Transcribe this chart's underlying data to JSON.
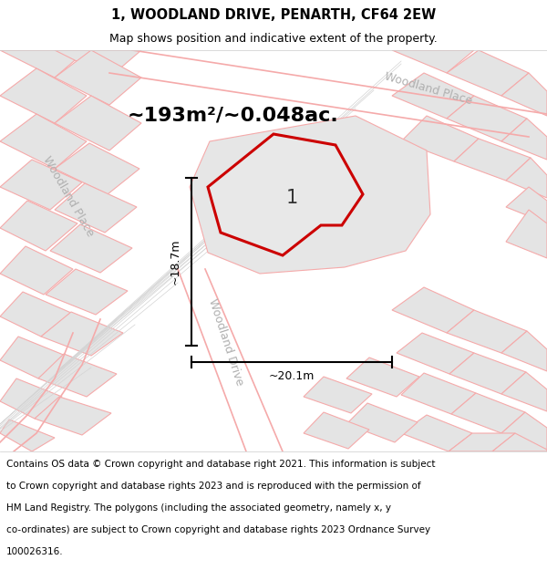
{
  "title": "1, WOODLAND DRIVE, PENARTH, CF64 2EW",
  "subtitle": "Map shows position and indicative extent of the property.",
  "area_label": "~193m²/~0.048ac.",
  "dim_label_h": "~18.7m",
  "dim_label_w": "~20.1m",
  "number_label": "1",
  "footer_line1": "Contains OS data © Crown copyright and database right 2021. This information is subject",
  "footer_line2": "to Crown copyright and database rights 2023 and is reproduced with the permission of",
  "footer_line3": "HM Land Registry. The polygons (including the associated geometry, namely x, y",
  "footer_line4": "co-ordinates) are subject to Crown copyright and database rights 2023 Ordnance Survey",
  "footer_line5": "100026316.",
  "bg_map_color": "#f0f0f0",
  "plot_fill": "#e0e0e0",
  "plot_outline": "#cc0000",
  "road_outline": "#f5aaaa",
  "block_fill": "#e4e4e4",
  "block_outline": "#d4d4d4",
  "white": "#ffffff",
  "street_label_color": "#b0b0b0",
  "title_fontsize": 10.5,
  "subtitle_fontsize": 9,
  "area_fontsize": 16,
  "number_fontsize": 15,
  "dim_fontsize": 9,
  "street_fontsize": 9,
  "footer_fontsize": 7.5
}
